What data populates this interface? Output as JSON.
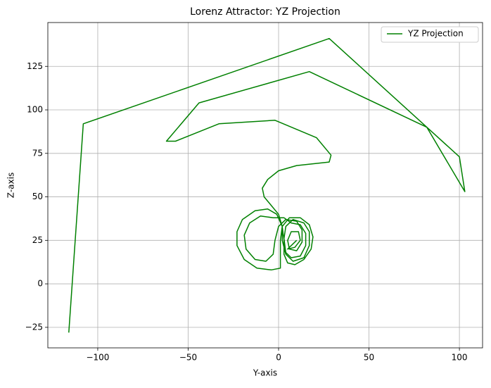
{
  "chart_data": {
    "type": "line",
    "title": "Lorenz Attractor: YZ Projection",
    "x_label": "Y-axis",
    "y_label": "Z-axis",
    "x": [
      -116,
      -108,
      28,
      82,
      100,
      103,
      82,
      17,
      -44,
      -62,
      -57,
      -33,
      -2,
      21,
      29,
      28,
      10,
      0,
      -6,
      -9,
      -8,
      -4,
      0,
      2,
      3,
      3,
      5,
      9,
      14,
      18,
      19,
      17,
      12,
      6,
      2,
      1,
      1,
      1,
      -4,
      -12,
      -19,
      -23,
      -23,
      -20,
      -13,
      -6,
      -1,
      2,
      2,
      4,
      8,
      14,
      17,
      17,
      14,
      8,
      4,
      3,
      4,
      7,
      12,
      15,
      15,
      12,
      7,
      3,
      -3,
      -10,
      -16,
      -19,
      -18,
      -13,
      -7,
      -3,
      -2,
      0,
      4,
      10,
      13,
      13,
      10,
      6,
      5,
      7,
      11,
      12,
      9,
      5,
      10
    ],
    "series": [
      {
        "name": "YZ Projection",
        "color": "#008000",
        "values": [
          -28,
          92,
          141,
          90,
          73,
          53,
          90,
          122,
          104,
          82,
          82,
          92,
          94,
          84,
          74,
          70,
          68,
          65,
          60,
          55,
          50,
          45,
          40,
          33,
          25,
          17,
          12,
          11,
          14,
          20,
          27,
          34,
          38,
          38,
          33,
          25,
          15,
          9,
          8,
          9,
          14,
          22,
          30,
          37,
          42,
          43,
          40,
          33,
          25,
          17,
          13,
          15,
          22,
          30,
          35,
          37,
          33,
          26,
          18,
          15,
          16,
          22,
          29,
          34,
          35,
          38,
          38,
          39,
          35,
          28,
          20,
          14,
          13,
          17,
          25,
          33,
          37,
          36,
          31,
          24,
          19,
          20,
          25,
          30,
          30,
          25,
          21,
          20,
          25
        ]
      }
    ],
    "xlim": [
      -127.6,
      112.8
    ],
    "ylim": [
      -36.8,
      150.2
    ],
    "xticks": [
      {
        "value": -100,
        "label": "−100"
      },
      {
        "value": -50,
        "label": "−50"
      },
      0,
      50,
      100
    ],
    "yticks": [
      {
        "value": -25,
        "label": "−25"
      },
      0,
      25,
      50,
      75,
      100,
      125
    ],
    "grid": true,
    "legend": "upper right"
  }
}
